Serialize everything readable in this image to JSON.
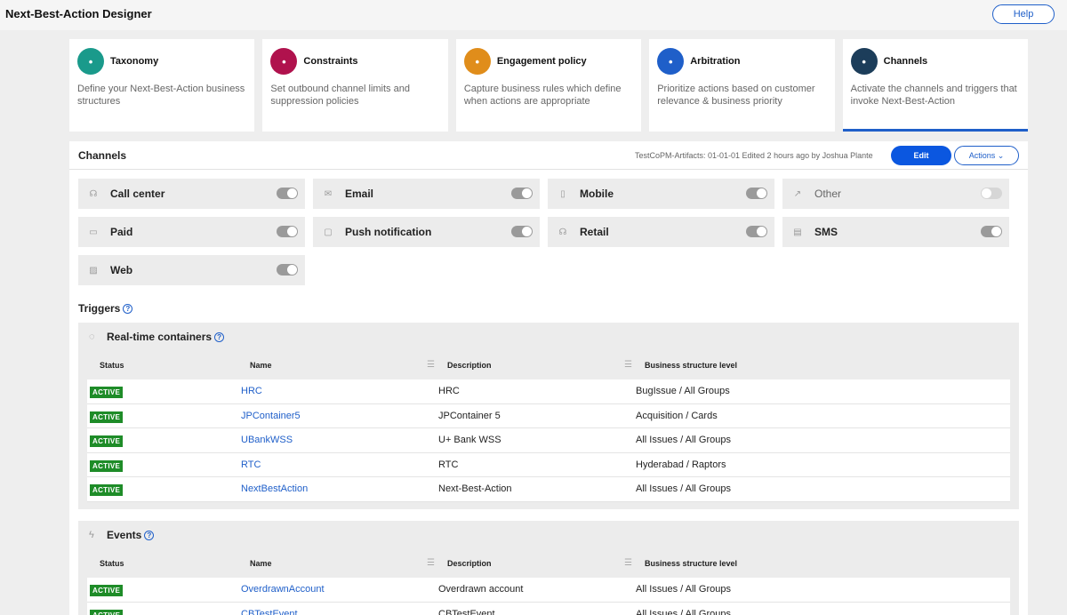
{
  "app": {
    "title": "Next-Best-Action Designer",
    "help_label": "Help"
  },
  "cards": [
    {
      "title": "Taxonomy",
      "desc": "Define your Next-Best-Action business structures",
      "icon": "taxonomy-icon",
      "color": "#1a9a8b"
    },
    {
      "title": "Constraints",
      "desc": "Set outbound channel limits and suppression policies",
      "icon": "constraints-icon",
      "color": "#b0124d"
    },
    {
      "title": "Engagement policy",
      "desc": "Capture business rules which define when actions are appropriate",
      "icon": "bolt-icon",
      "color": "#e08d1b"
    },
    {
      "title": "Arbitration",
      "desc": "Prioritize actions based on customer relevance & business priority",
      "icon": "arbitration-icon",
      "color": "#1f5fc9"
    },
    {
      "title": "Channels",
      "desc": "Activate the channels and triggers that invoke Next-Best-Action",
      "icon": "share-icon",
      "color": "#1c3d5a"
    }
  ],
  "panel": {
    "title": "Channels",
    "meta": "TestCoPM-Artifacts: 01-01-01   Edited 2 hours ago by Joshua Plante",
    "edit_label": "Edit",
    "actions_label": "Actions"
  },
  "channels": [
    {
      "label": "Call center",
      "icon": "headset-icon",
      "glyph": "☊",
      "on": true
    },
    {
      "label": "Email",
      "icon": "email-icon",
      "glyph": "✉",
      "on": true
    },
    {
      "label": "Mobile",
      "icon": "mobile-icon",
      "glyph": "▯",
      "on": true
    },
    {
      "label": "Other",
      "icon": "other-icon",
      "glyph": "↗",
      "on": false
    },
    {
      "label": "Paid",
      "icon": "paid-icon",
      "glyph": "▭",
      "on": true
    },
    {
      "label": "Push notification",
      "icon": "push-icon",
      "glyph": "▢",
      "on": true
    },
    {
      "label": "Retail",
      "icon": "retail-icon",
      "glyph": "☊",
      "on": true
    },
    {
      "label": "SMS",
      "icon": "sms-icon",
      "glyph": "▤",
      "on": true
    },
    {
      "label": "Web",
      "icon": "web-icon",
      "glyph": "▨",
      "on": true
    }
  ],
  "triggers": {
    "title": "Triggers"
  },
  "columns": {
    "status": "Status",
    "name": "Name",
    "description": "Description",
    "level": "Business structure level"
  },
  "realtime": {
    "title": "Real-time containers",
    "rows": [
      {
        "status": "ACTIVE",
        "name": "HRC",
        "description": "HRC",
        "level": "BugIssue / All Groups"
      },
      {
        "status": "ACTIVE",
        "name": "JPContainer5",
        "description": "JPContainer 5",
        "level": "Acquisition / Cards"
      },
      {
        "status": "ACTIVE",
        "name": "UBankWSS",
        "description": "U+ Bank WSS",
        "level": "All Issues / All Groups"
      },
      {
        "status": "ACTIVE",
        "name": "RTC",
        "description": "RTC",
        "level": "Hyderabad / Raptors"
      },
      {
        "status": "ACTIVE",
        "name": "NextBestAction",
        "description": "Next-Best-Action",
        "level": "All Issues / All Groups"
      }
    ]
  },
  "events": {
    "title": "Events",
    "rows": [
      {
        "status": "ACTIVE",
        "name": "OverdrawnAccount",
        "description": "Overdrawn account",
        "level": "All Issues / All Groups"
      },
      {
        "status": "ACTIVE",
        "name": "CBTestEvent",
        "description": "CBTestEvent",
        "level": "All Issues / All Groups"
      }
    ]
  }
}
